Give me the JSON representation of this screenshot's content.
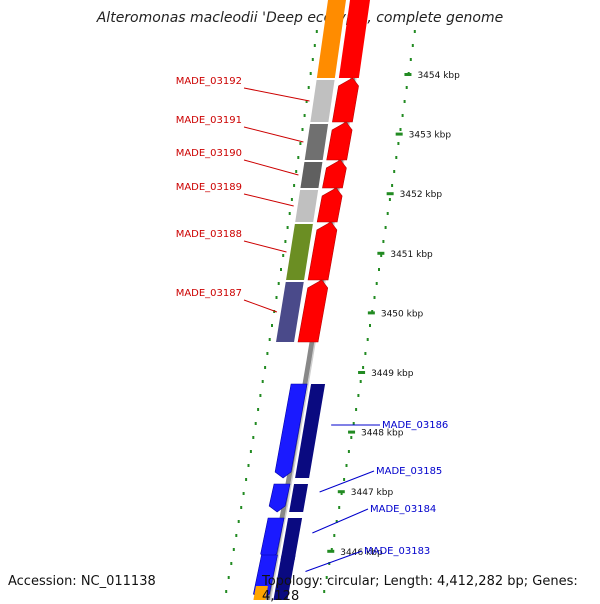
{
  "title": "Alteromonas macleodii 'Deep ecotype', complete genome",
  "footer": {
    "accession": "Accession: NC_011138",
    "summary": "Topology: circular; Length: 4,412,282 bp; Genes: 4,128"
  },
  "colors": {
    "backbone": "#888888",
    "tick": "#228b22",
    "forward_label": "#cc0000",
    "reverse_label": "#0000cc",
    "strand_forward": "#ff0000",
    "strand_reverse_light": "#1a1aff",
    "strand_reverse_dark": "#0a0a80"
  },
  "ticks": [
    {
      "label": "3454 kbp"
    },
    {
      "label": "3453 kbp"
    },
    {
      "label": "3452 kbp"
    },
    {
      "label": "3451 kbp"
    },
    {
      "label": "3450 kbp"
    },
    {
      "label": "3449 kbp"
    },
    {
      "label": "3448 kbp"
    },
    {
      "label": "3447 kbp"
    },
    {
      "label": "3446 kbp"
    }
  ],
  "forward_genes": [
    {
      "name": "MADE_03192",
      "cog_color": "#c0c0c0"
    },
    {
      "name": "MADE_03191",
      "cog_color": "#707070"
    },
    {
      "name": "MADE_03190",
      "cog_color": "#606060"
    },
    {
      "name": "MADE_03189",
      "cog_color": "#c0c0c0"
    },
    {
      "name": "MADE_03188",
      "cog_color": "#6b8e23"
    },
    {
      "name": "MADE_03187",
      "cog_color": "#4a4a8a"
    }
  ],
  "reverse_genes": [
    {
      "name": "MADE_03186"
    },
    {
      "name": "MADE_03185"
    },
    {
      "name": "MADE_03184"
    },
    {
      "name": "MADE_03183"
    }
  ]
}
